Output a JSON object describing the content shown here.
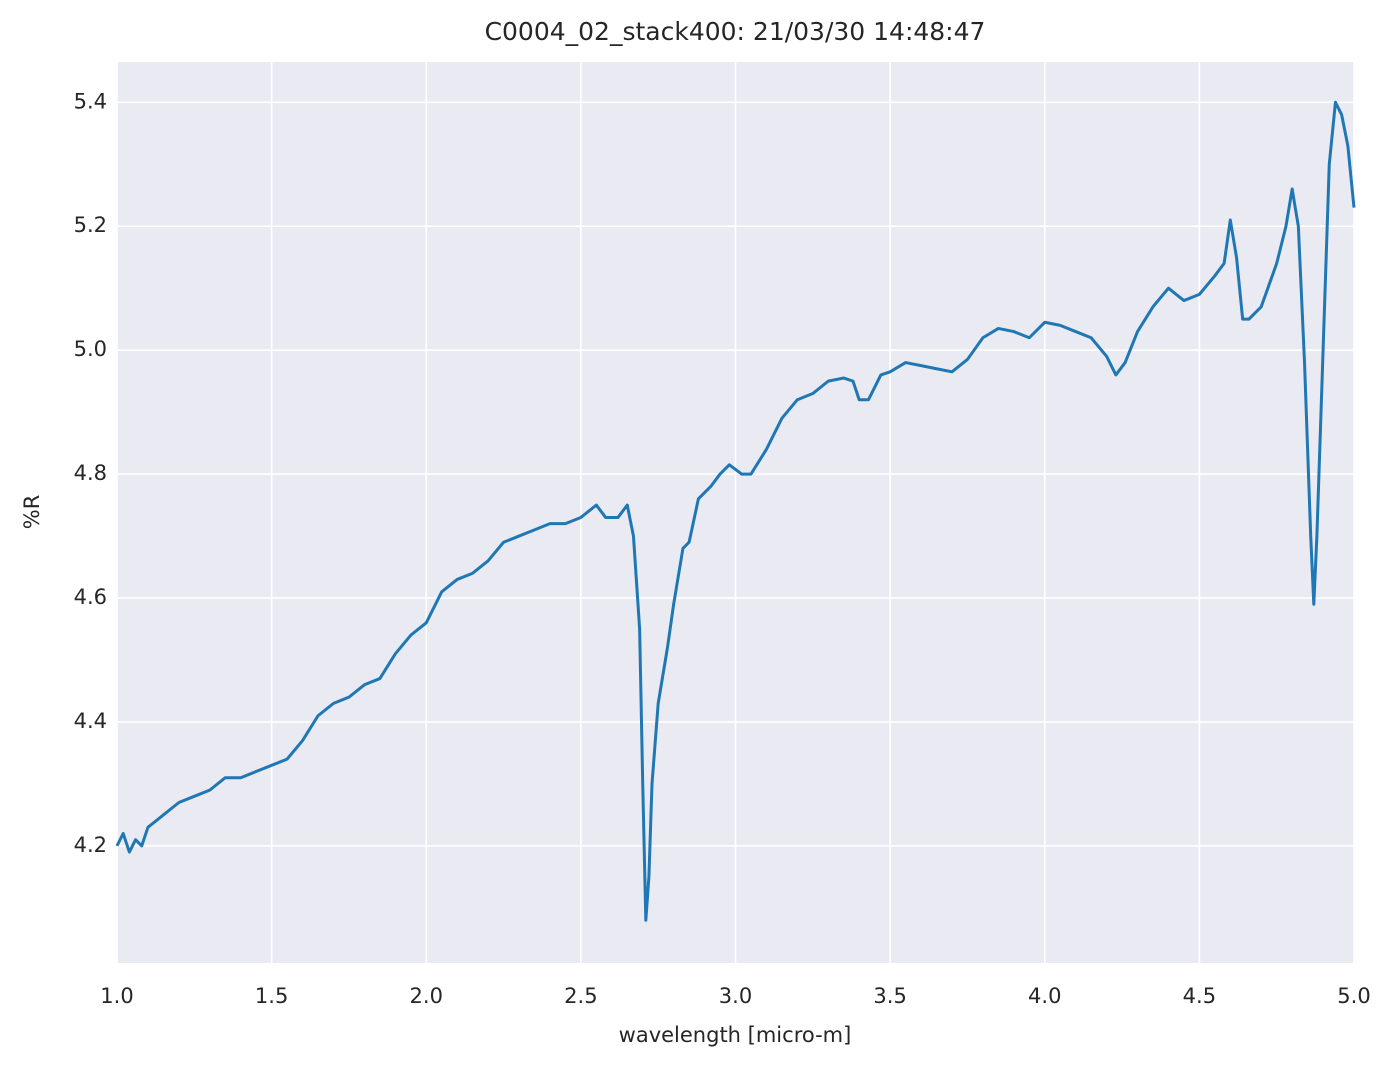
{
  "chart_data": {
    "type": "line",
    "title": "C0004_02_stack400:  21/03/30 14:48:47",
    "x_label": "wavelength [micro-m]",
    "y_label": "%R",
    "color": "#1f77b4",
    "grid": true,
    "x": [
      1.0,
      1.02,
      1.04,
      1.06,
      1.08,
      1.1,
      1.15,
      1.2,
      1.25,
      1.3,
      1.35,
      1.4,
      1.45,
      1.5,
      1.55,
      1.6,
      1.65,
      1.7,
      1.75,
      1.8,
      1.85,
      1.9,
      1.95,
      2.0,
      2.05,
      2.1,
      2.15,
      2.2,
      2.25,
      2.3,
      2.35,
      2.4,
      2.45,
      2.5,
      2.55,
      2.58,
      2.62,
      2.65,
      2.67,
      2.69,
      2.7,
      2.71,
      2.72,
      2.73,
      2.75,
      2.78,
      2.8,
      2.83,
      2.85,
      2.88,
      2.92,
      2.95,
      2.98,
      3.02,
      3.05,
      3.1,
      3.15,
      3.2,
      3.25,
      3.3,
      3.35,
      3.38,
      3.4,
      3.43,
      3.47,
      3.5,
      3.55,
      3.6,
      3.65,
      3.7,
      3.75,
      3.8,
      3.85,
      3.9,
      3.95,
      4.0,
      4.05,
      4.1,
      4.15,
      4.2,
      4.23,
      4.26,
      4.3,
      4.35,
      4.4,
      4.45,
      4.5,
      4.55,
      4.58,
      4.6,
      4.62,
      4.64,
      4.66,
      4.7,
      4.75,
      4.78,
      4.8,
      4.82,
      4.84,
      4.86,
      4.87,
      4.88,
      4.9,
      4.92,
      4.94,
      4.96,
      4.98,
      5.0
    ],
    "values": [
      4.2,
      4.22,
      4.19,
      4.21,
      4.2,
      4.23,
      4.25,
      4.27,
      4.28,
      4.29,
      4.31,
      4.31,
      4.32,
      4.33,
      4.34,
      4.37,
      4.41,
      4.43,
      4.44,
      4.46,
      4.47,
      4.51,
      4.54,
      4.56,
      4.61,
      4.63,
      4.64,
      4.66,
      4.69,
      4.7,
      4.71,
      4.72,
      4.72,
      4.73,
      4.75,
      4.73,
      4.73,
      4.75,
      4.7,
      4.55,
      4.3,
      4.08,
      4.15,
      4.3,
      4.43,
      4.52,
      4.59,
      4.68,
      4.69,
      4.76,
      4.78,
      4.8,
      4.815,
      4.8,
      4.8,
      4.84,
      4.89,
      4.92,
      4.93,
      4.95,
      4.955,
      4.95,
      4.92,
      4.92,
      4.96,
      4.965,
      4.98,
      4.975,
      4.97,
      4.965,
      4.985,
      5.02,
      5.035,
      5.03,
      5.02,
      5.045,
      5.04,
      5.03,
      5.02,
      4.99,
      4.96,
      4.98,
      5.03,
      5.07,
      5.1,
      5.08,
      5.09,
      5.12,
      5.14,
      5.21,
      5.15,
      5.05,
      5.05,
      5.07,
      5.14,
      5.2,
      5.26,
      5.2,
      4.98,
      4.7,
      4.59,
      4.7,
      5.0,
      5.3,
      5.4,
      5.38,
      5.33,
      5.23
    ],
    "xlim": [
      1,
      5
    ],
    "ylim": [
      4.011,
      5.465
    ],
    "xticks": [
      {
        "value": 1,
        "label": "1.0"
      },
      1.5,
      {
        "value": 2,
        "label": "2.0"
      },
      2.5,
      {
        "value": 3,
        "label": "3.0"
      },
      3.5,
      {
        "value": 4,
        "label": "4.0"
      },
      4.5,
      {
        "value": 5,
        "label": "5.0"
      }
    ],
    "yticks": [
      4.2,
      4.4,
      4.6,
      4.8,
      {
        "value": 5,
        "label": "5.0"
      },
      5.2,
      5.4
    ]
  }
}
